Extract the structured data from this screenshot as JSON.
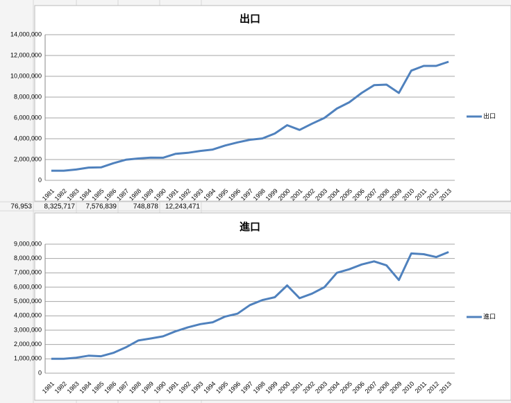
{
  "sheet_row": [
    "76,953",
    "8,325,717",
    "7,576,839",
    "748,878",
    "12,243,471"
  ],
  "chart_data": [
    {
      "type": "line",
      "title": "出口",
      "categories": [
        "1981",
        "1982",
        "1983",
        "1984",
        "1985",
        "1986",
        "1987",
        "1988",
        "1989",
        "1990",
        "1991",
        "1992",
        "1993",
        "1994",
        "1995",
        "1996",
        "1997",
        "1998",
        "1999",
        "2000",
        "2001",
        "2002",
        "2003",
        "2004",
        "2005",
        "2006",
        "2007",
        "2008",
        "2009",
        "2010",
        "2011",
        "2012",
        "2013"
      ],
      "series": [
        {
          "name": "出口",
          "color": "#4f81bd",
          "values": [
            930000,
            930000,
            1040000,
            1230000,
            1250000,
            1650000,
            1980000,
            2100000,
            2180000,
            2170000,
            2550000,
            2650000,
            2830000,
            2960000,
            3350000,
            3650000,
            3900000,
            4030000,
            4500000,
            5300000,
            4850000,
            5450000,
            6000000,
            6900000,
            7500000,
            8400000,
            9150000,
            9200000,
            8400000,
            10550000,
            11000000,
            11000000,
            11400000
          ]
        }
      ],
      "ylim": [
        0,
        14000000
      ],
      "yticks": [
        0,
        {
          "value": 2000000,
          "label": "2,000,000"
        },
        {
          "value": 4000000,
          "label": "4,000,000"
        },
        {
          "value": 6000000,
          "label": "6,000,000"
        },
        {
          "value": 8000000,
          "label": "8,000,000"
        },
        {
          "value": 10000000,
          "label": "10,000,000"
        },
        {
          "value": 12000000,
          "label": "12,000,000"
        },
        {
          "value": 14000000,
          "label": "14,000,000"
        }
      ],
      "grid": true,
      "legend": "right"
    },
    {
      "type": "line",
      "title": "進口",
      "categories": [
        "1981",
        "1982",
        "1983",
        "1984",
        "1985",
        "1986",
        "1987",
        "1988",
        "1989",
        "1990",
        "1991",
        "1992",
        "1993",
        "1994",
        "1995",
        "1996",
        "1997",
        "1998",
        "1999",
        "2000",
        "2001",
        "2002",
        "2003",
        "2004",
        "2005",
        "2006",
        "2007",
        "2008",
        "2009",
        "2010",
        "2011",
        "2012",
        "2013"
      ],
      "series": [
        {
          "name": "進口",
          "color": "#4f81bd",
          "values": [
            1000000,
            1000000,
            1080000,
            1220000,
            1180000,
            1420000,
            1800000,
            2280000,
            2420000,
            2570000,
            2920000,
            3200000,
            3420000,
            3550000,
            3950000,
            4150000,
            4750000,
            5100000,
            5300000,
            6120000,
            5230000,
            5550000,
            6000000,
            7000000,
            7250000,
            7580000,
            7800000,
            7520000,
            6500000,
            8350000,
            8300000,
            8100000,
            8450000
          ]
        }
      ],
      "ylim": [
        0,
        9000000
      ],
      "yticks": [
        0,
        {
          "value": 1000000,
          "label": "1,000,000"
        },
        {
          "value": 2000000,
          "label": "2,000,000"
        },
        {
          "value": 3000000,
          "label": "3,000,000"
        },
        {
          "value": 4000000,
          "label": "4,000,000"
        },
        {
          "value": 5000000,
          "label": "5,000,000"
        },
        {
          "value": 6000000,
          "label": "6,000,000"
        },
        {
          "value": 7000000,
          "label": "7,000,000"
        },
        {
          "value": 8000000,
          "label": "8,000,000"
        },
        {
          "value": 9000000,
          "label": "9,000,000"
        }
      ],
      "grid": true,
      "legend": "right"
    }
  ]
}
